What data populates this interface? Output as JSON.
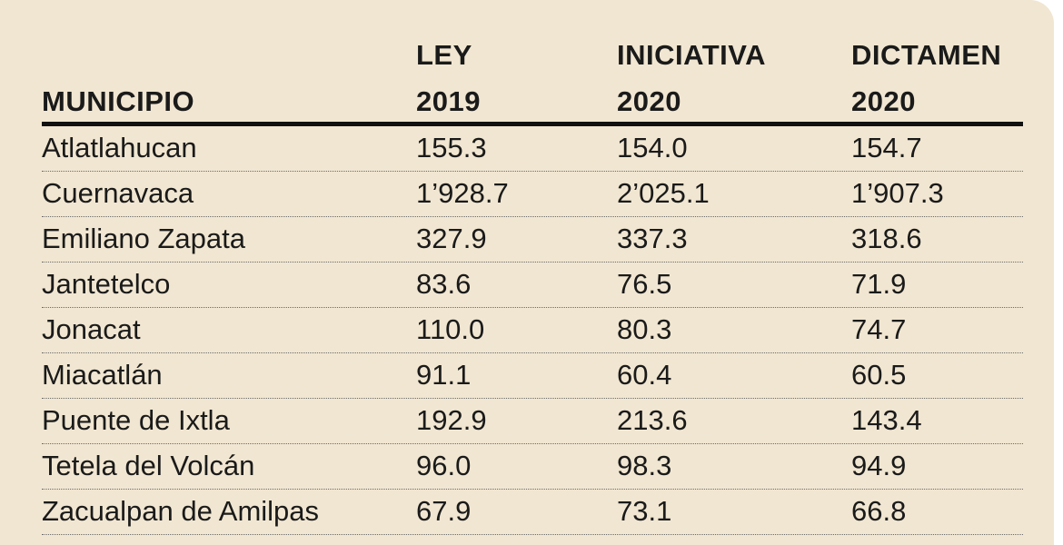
{
  "table": {
    "headers": {
      "municipio": "MUNICIPIO",
      "ley_line1": "LEY",
      "ley_line2": "2019",
      "iniciativa_line1": "INICIATIVA",
      "iniciativa_line2": "2020",
      "dictamen_line1": "DICTAMEN",
      "dictamen_line2": "2020"
    },
    "rows": [
      {
        "municipio": "Atlatlahucan",
        "ley2019": "155.3",
        "iniciativa2020": "154.0",
        "dictamen2020": "154.7"
      },
      {
        "municipio": "Cuernavaca",
        "ley2019": "1’928.7",
        "iniciativa2020": "2’025.1",
        "dictamen2020": "1’907.3"
      },
      {
        "municipio": "Emiliano Zapata",
        "ley2019": "327.9",
        "iniciativa2020": "337.3",
        "dictamen2020": "318.6"
      },
      {
        "municipio": "Jantetelco",
        "ley2019": "83.6",
        "iniciativa2020": "76.5",
        "dictamen2020": "71.9"
      },
      {
        "municipio": "Jonacat",
        "ley2019": "110.0",
        "iniciativa2020": "80.3",
        "dictamen2020": "74.7"
      },
      {
        "municipio": "Miacatlán",
        "ley2019": "91.1",
        "iniciativa2020": "60.4",
        "dictamen2020": "60.5"
      },
      {
        "municipio": "Puente de Ixtla",
        "ley2019": "192.9",
        "iniciativa2020": "213.6",
        "dictamen2020": "143.4"
      },
      {
        "municipio": "Tetela del Volcán",
        "ley2019": "96.0",
        "iniciativa2020": "98.3",
        "dictamen2020": "94.9"
      },
      {
        "municipio": "Zacualpan de Amilpas",
        "ley2019": "67.9",
        "iniciativa2020": "73.1",
        "dictamen2020": "66.8"
      }
    ]
  }
}
